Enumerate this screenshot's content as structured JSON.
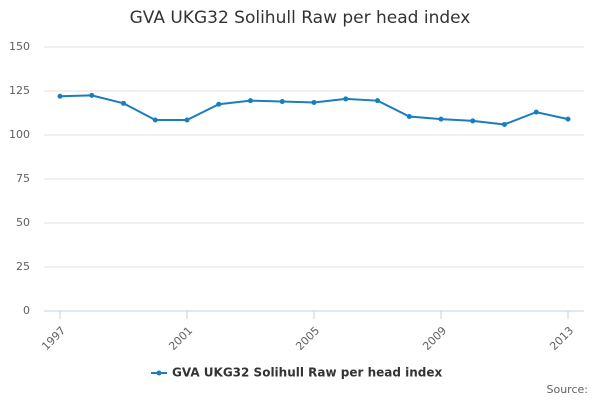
{
  "chart_data": {
    "type": "line",
    "title": "GVA UKG32 Solihull Raw per head index",
    "x": [
      1997,
      1998,
      1999,
      2000,
      2001,
      2002,
      2003,
      2004,
      2005,
      2006,
      2007,
      2008,
      2009,
      2010,
      2011,
      2012,
      2013
    ],
    "series": [
      {
        "name": "GVA UKG32 Solihull Raw per head index",
        "color": "#1a7dbf",
        "values": [
          122,
          122.5,
          118,
          108.5,
          108.5,
          117.5,
          119.5,
          119,
          118.5,
          120.5,
          119.5,
          110.5,
          109,
          108,
          106,
          113,
          109
        ]
      }
    ],
    "xlim": [
      1997,
      2013
    ],
    "xticks": [
      1997,
      2001,
      2005,
      2009,
      2013
    ],
    "ylim": [
      0,
      150
    ],
    "yticks": [
      0,
      25,
      50,
      75,
      100,
      125,
      150
    ],
    "grid": true,
    "source": "Source:"
  }
}
